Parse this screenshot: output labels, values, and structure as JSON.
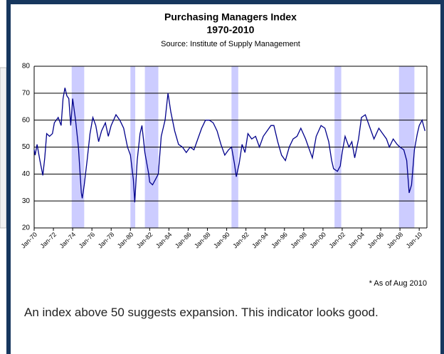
{
  "chart_data": {
    "type": "line",
    "title": "Purchasing Managers Index",
    "subtitle": "1970-2010",
    "source": "Source: Institute of Supply Management",
    "note": "* As of Aug 2010",
    "x": [
      1970.0,
      1970.1,
      1970.3,
      1970.6,
      1970.9,
      1971.1,
      1971.3,
      1971.6,
      1971.9,
      1972.1,
      1972.5,
      1972.8,
      1973.0,
      1973.2,
      1973.4,
      1973.6,
      1973.8,
      1974.0,
      1974.3,
      1974.6,
      1974.9,
      1975.0,
      1975.2,
      1975.5,
      1975.8,
      1976.1,
      1976.4,
      1976.7,
      1977.0,
      1977.4,
      1977.7,
      1978.0,
      1978.5,
      1978.9,
      1979.3,
      1979.7,
      1980.0,
      1980.3,
      1980.45,
      1980.7,
      1981.0,
      1981.2,
      1981.5,
      1981.9,
      1982.0,
      1982.3,
      1982.6,
      1982.9,
      1983.2,
      1983.6,
      1983.9,
      1984.2,
      1984.6,
      1985.0,
      1985.4,
      1985.8,
      1986.2,
      1986.6,
      1987.0,
      1987.4,
      1987.8,
      1988.2,
      1988.6,
      1989.0,
      1989.4,
      1989.8,
      1990.2,
      1990.5,
      1990.8,
      1991.0,
      1991.3,
      1991.6,
      1991.9,
      1992.2,
      1992.6,
      1993.0,
      1993.4,
      1993.8,
      1994.2,
      1994.6,
      1994.9,
      1995.3,
      1995.7,
      1996.1,
      1996.5,
      1996.9,
      1997.3,
      1997.7,
      1998.2,
      1998.6,
      1998.9,
      1999.3,
      1999.8,
      2000.2,
      2000.6,
      2000.9,
      2001.1,
      2001.5,
      2001.8,
      2002.0,
      2002.3,
      2002.7,
      2003.0,
      2003.3,
      2003.7,
      2004.0,
      2004.4,
      2004.9,
      2005.3,
      2005.8,
      2006.2,
      2006.6,
      2006.9,
      2007.3,
      2007.7,
      2008.0,
      2008.4,
      2008.7,
      2008.95,
      2009.2,
      2009.5,
      2009.8,
      2010.0,
      2010.3,
      2010.6
    ],
    "series": [
      {
        "color": "#00008b",
        "values": [
          49,
          47,
          51,
          45,
          39.5,
          46,
          55,
          54,
          55,
          59,
          61,
          58,
          68,
          72,
          69,
          68,
          58,
          68,
          60,
          50,
          33,
          31,
          36,
          45,
          55,
          61,
          58,
          52,
          56,
          59,
          54,
          58,
          62,
          60,
          57,
          50,
          47,
          38,
          29.5,
          45,
          55,
          58,
          48,
          40,
          37,
          36,
          38,
          40,
          54,
          60,
          70,
          63,
          56,
          51,
          50,
          48,
          50,
          49,
          53,
          57,
          60,
          60,
          59,
          56,
          51,
          47,
          49,
          50,
          44,
          39,
          44,
          51,
          48,
          55,
          53,
          54,
          50,
          54,
          56,
          58,
          58,
          52,
          47,
          45,
          50,
          53,
          54,
          57,
          53,
          49,
          46,
          54,
          58,
          57,
          52,
          45,
          42,
          41,
          43,
          48,
          54,
          50,
          52,
          46,
          53,
          61,
          62,
          57,
          53,
          57,
          55,
          53,
          50,
          53,
          51,
          50,
          49,
          45,
          33,
          36,
          49,
          55,
          58,
          60,
          56
        ]
      }
    ],
    "recessions": [
      [
        1973.9,
        1975.2
      ],
      [
        1980.0,
        1980.5
      ],
      [
        1981.5,
        1982.9
      ],
      [
        1990.5,
        1991.2
      ],
      [
        2001.2,
        2001.9
      ],
      [
        2007.9,
        2009.5
      ]
    ],
    "recession_color": "#ccccff",
    "xlim": [
      1970,
      2010.8
    ],
    "xticks": [
      {
        "value": 1970,
        "label": "Jan-70"
      },
      {
        "value": 1972,
        "label": "Jan-72"
      },
      {
        "value": 1974,
        "label": "Jan-74"
      },
      {
        "value": 1976,
        "label": "Jan-76"
      },
      {
        "value": 1978,
        "label": "Jan-78"
      },
      {
        "value": 1980,
        "label": "Jan-80"
      },
      {
        "value": 1982,
        "label": "Jan-82"
      },
      {
        "value": 1984,
        "label": "Jan-84"
      },
      {
        "value": 1986,
        "label": "Jan-86"
      },
      {
        "value": 1988,
        "label": "Jan-88"
      },
      {
        "value": 1990,
        "label": "Jan-90"
      },
      {
        "value": 1992,
        "label": "Jan-92"
      },
      {
        "value": 1994,
        "label": "Jan-94"
      },
      {
        "value": 1996,
        "label": "Jan-96"
      },
      {
        "value": 1998,
        "label": "Jan-98"
      },
      {
        "value": 2000,
        "label": "Jan-00"
      },
      {
        "value": 2002,
        "label": "Jan-02"
      },
      {
        "value": 2004,
        "label": "Jan-04"
      },
      {
        "value": 2006,
        "label": "Jan-06"
      },
      {
        "value": 2008,
        "label": "Jan-08"
      },
      {
        "value": 2010,
        "label": "Jan-10"
      }
    ],
    "ylim": [
      20,
      80
    ],
    "yticks": [
      20,
      30,
      40,
      50,
      60,
      70,
      80
    ],
    "grid": true
  },
  "caption": "An index above 50 suggests expansion. This indicator looks good."
}
